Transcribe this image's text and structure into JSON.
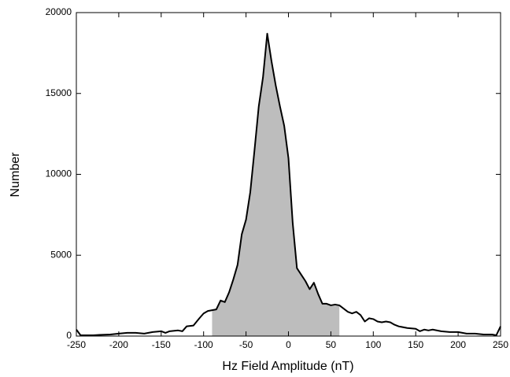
{
  "chart_data": {
    "type": "line",
    "xlabel": "Hz Field Amplitude (nT)",
    "ylabel": "Number",
    "x": [
      -250,
      -245,
      -240,
      -230,
      -220,
      -210,
      -200,
      -190,
      -180,
      -170,
      -160,
      -150,
      -145,
      -140,
      -130,
      -125,
      -120,
      -112,
      -105,
      -100,
      -95,
      -90,
      -85,
      -80,
      -75,
      -70,
      -65,
      -60,
      -55,
      -50,
      -45,
      -40,
      -35,
      -30,
      -25,
      -20,
      -15,
      -10,
      -5,
      0,
      5,
      10,
      15,
      20,
      25,
      30,
      35,
      40,
      45,
      50,
      55,
      60,
      65,
      70,
      75,
      80,
      85,
      90,
      95,
      100,
      105,
      110,
      115,
      120,
      125,
      130,
      140,
      150,
      155,
      160,
      165,
      170,
      180,
      190,
      200,
      210,
      220,
      230,
      240,
      245,
      250
    ],
    "values": [
      400,
      50,
      50,
      50,
      80,
      100,
      150,
      200,
      200,
      150,
      250,
      300,
      200,
      300,
      350,
      300,
      600,
      650,
      1100,
      1400,
      1550,
      1600,
      1650,
      2200,
      2100,
      2700,
      3500,
      4400,
      6300,
      7200,
      8900,
      11500,
      14200,
      16000,
      18700,
      17000,
      15500,
      14200,
      13000,
      11000,
      7000,
      4200,
      3800,
      3400,
      2900,
      3300,
      2600,
      2000,
      2000,
      1900,
      1950,
      1900,
      1700,
      1500,
      1400,
      1500,
      1300,
      900,
      1100,
      1050,
      900,
      850,
      900,
      850,
      700,
      600,
      500,
      450,
      300,
      400,
      350,
      400,
      300,
      250,
      250,
      150,
      150,
      100,
      100,
      50,
      600
    ],
    "color": "#000000",
    "shade_color": "#bdbdbd",
    "shaded_xrange": [
      -90,
      60
    ],
    "xlim": [
      -250,
      250
    ],
    "ylim": [
      0,
      20000
    ],
    "xticks": [
      -250,
      -200,
      -150,
      -100,
      -50,
      0,
      50,
      100,
      150,
      200,
      250
    ],
    "yticks": [
      0,
      5000,
      10000,
      15000,
      20000
    ]
  }
}
